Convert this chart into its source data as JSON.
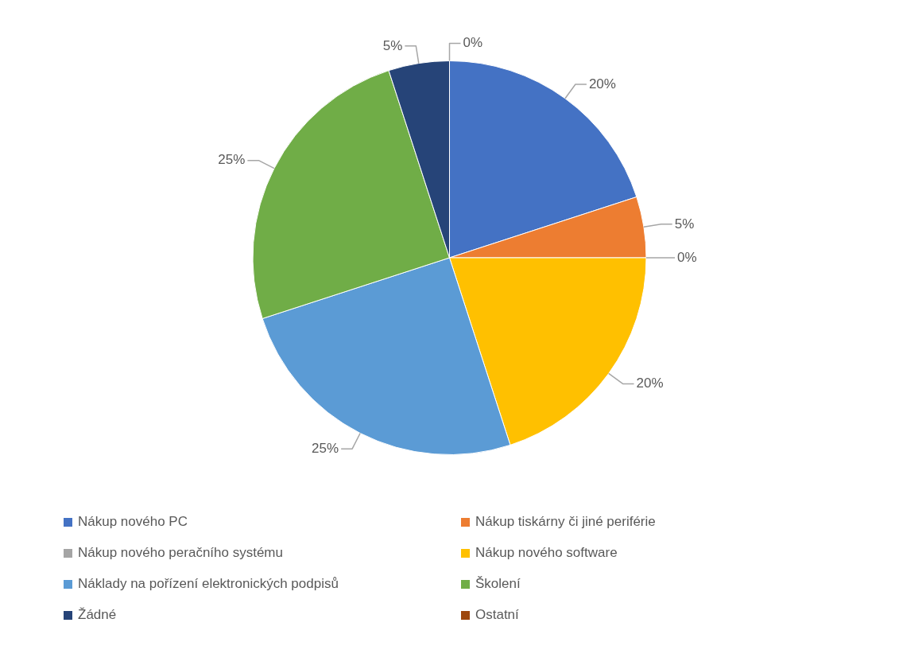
{
  "chart_data": {
    "type": "pie",
    "categories": [
      "Nákup nového PC",
      "Nákup tiskárny či jiné periférie",
      "Nákup nového peračního systému",
      "Nákup nového software",
      "Náklady na pořízení elektronických podpisů",
      "Školení",
      "Žádné",
      "Ostatní"
    ],
    "values": [
      20,
      5,
      0,
      20,
      25,
      25,
      5,
      0
    ],
    "colors": [
      "#4472c4",
      "#ed7d31",
      "#a5a5a5",
      "#ffc000",
      "#5b9bd5",
      "#70ad47",
      "#264478",
      "#9e480e"
    ],
    "value_labels": [
      "20%",
      "5%",
      "0%",
      "20%",
      "25%",
      "25%",
      "5%",
      "0%"
    ],
    "legend": "bottom"
  }
}
